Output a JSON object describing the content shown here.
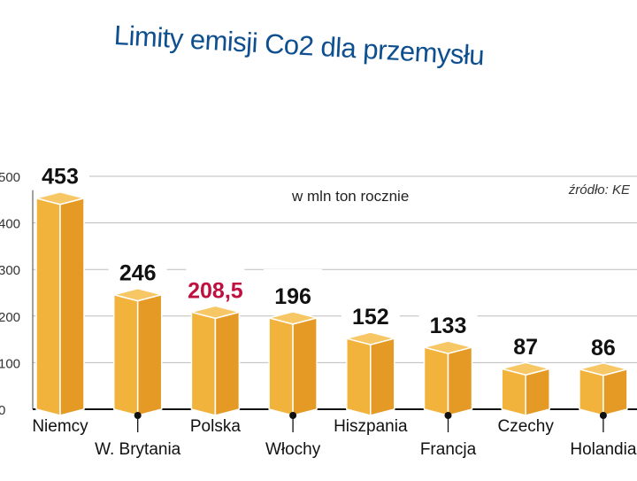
{
  "chart_data": {
    "type": "bar",
    "title": "Limity emisji Co2 dla przemysłu",
    "subtitle": "w mln ton rocznie",
    "source": "źródło: KE",
    "categories": [
      "Niemcy",
      "W. Brytania",
      "Polska",
      "Włochy",
      "Hiszpania",
      "Francja",
      "Czechy",
      "Holandia"
    ],
    "values": [
      453,
      246,
      208.5,
      196,
      152,
      133,
      87,
      86
    ],
    "value_labels": [
      "453",
      "246",
      "208,5",
      "196",
      "152",
      "133",
      "87",
      "86"
    ],
    "highlight": "Polska",
    "ylim": [
      0,
      500
    ],
    "yticks": [
      0,
      100,
      200,
      300,
      400,
      500
    ],
    "grid": true,
    "xlabel": "",
    "ylabel": ""
  },
  "colors": {
    "title": "#0e4f8f",
    "bar_front": "#f2b33d",
    "bar_side": "#e49a25",
    "bar_top": "#f7c766",
    "highlight_label": "#c0103f",
    "label": "#111111",
    "grid": "#bdbdbd"
  }
}
